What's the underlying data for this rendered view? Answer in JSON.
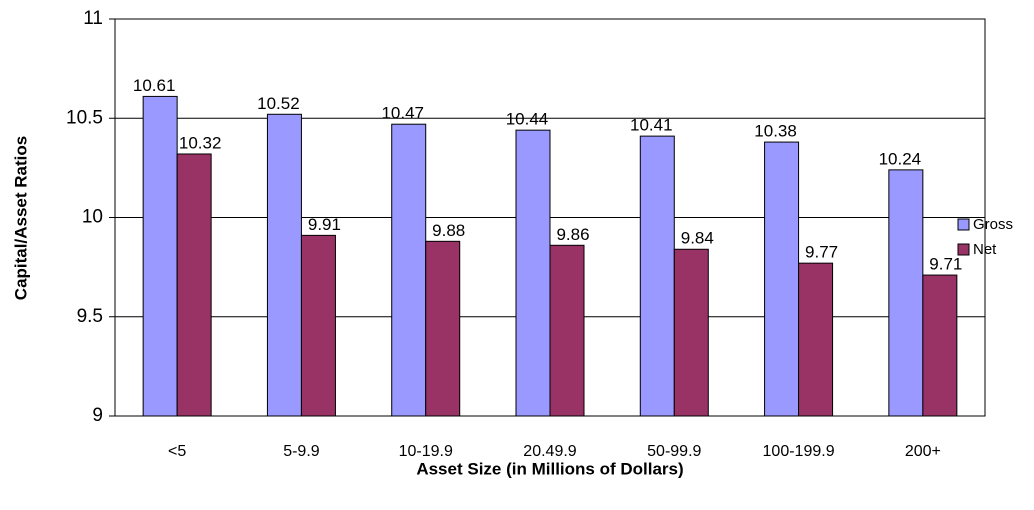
{
  "chart_data": {
    "type": "bar",
    "x_label": "Asset Size (in Millions of Dollars)",
    "y_label": "Capital/Asset Ratios",
    "categories": [
      "<5",
      "5-9.9",
      "10-19.9",
      "20.49.9",
      "50-99.9",
      "100-199.9",
      "200+"
    ],
    "series": [
      {
        "name": "Gross",
        "color": "#9999ff",
        "values": [
          10.61,
          10.52,
          10.47,
          10.44,
          10.41,
          10.38,
          10.24
        ]
      },
      {
        "name": "Net",
        "color": "#993366",
        "values": [
          10.32,
          9.91,
          9.88,
          9.86,
          9.84,
          9.77,
          9.71
        ]
      }
    ],
    "ylim": [
      9,
      11
    ],
    "yticks": [
      9,
      9.5,
      10,
      10.5,
      11
    ],
    "grid": true,
    "legend": "right"
  }
}
